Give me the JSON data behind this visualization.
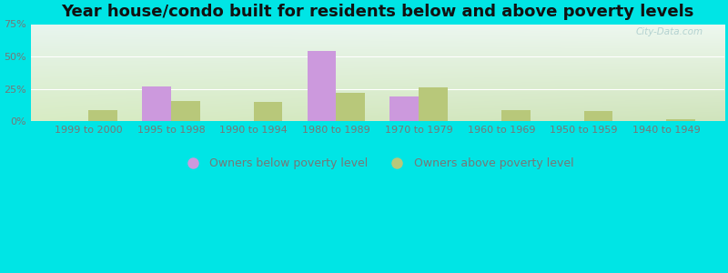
{
  "title": "Year house/condo built for residents below and above poverty levels",
  "categories": [
    "1999 to 2000",
    "1995 to 1998",
    "1990 to 1994",
    "1980 to 1989",
    "1970 to 1979",
    "1960 to 1969",
    "1950 to 1959",
    "1940 to 1949"
  ],
  "below_poverty": [
    0,
    27,
    0,
    54,
    19,
    0,
    0,
    0
  ],
  "above_poverty": [
    9,
    16,
    15,
    22,
    26,
    9,
    8,
    2
  ],
  "below_color": "#cc99dd",
  "above_color": "#b8c87a",
  "background_outer": "#00e5e5",
  "background_inner_topleft": "#e8f5ef",
  "background_inner_bottomright": "#d4e8c0",
  "ylim": [
    0,
    75
  ],
  "yticks": [
    0,
    25,
    50,
    75
  ],
  "ytick_labels": [
    "0%",
    "25%",
    "50%",
    "75%"
  ],
  "legend_below": "Owners below poverty level",
  "legend_above": "Owners above poverty level",
  "bar_width": 0.35,
  "title_fontsize": 13,
  "tick_fontsize": 8,
  "legend_fontsize": 9,
  "grid_color": "#ffffff",
  "tick_color": "#777777",
  "watermark": "City-Data.com"
}
